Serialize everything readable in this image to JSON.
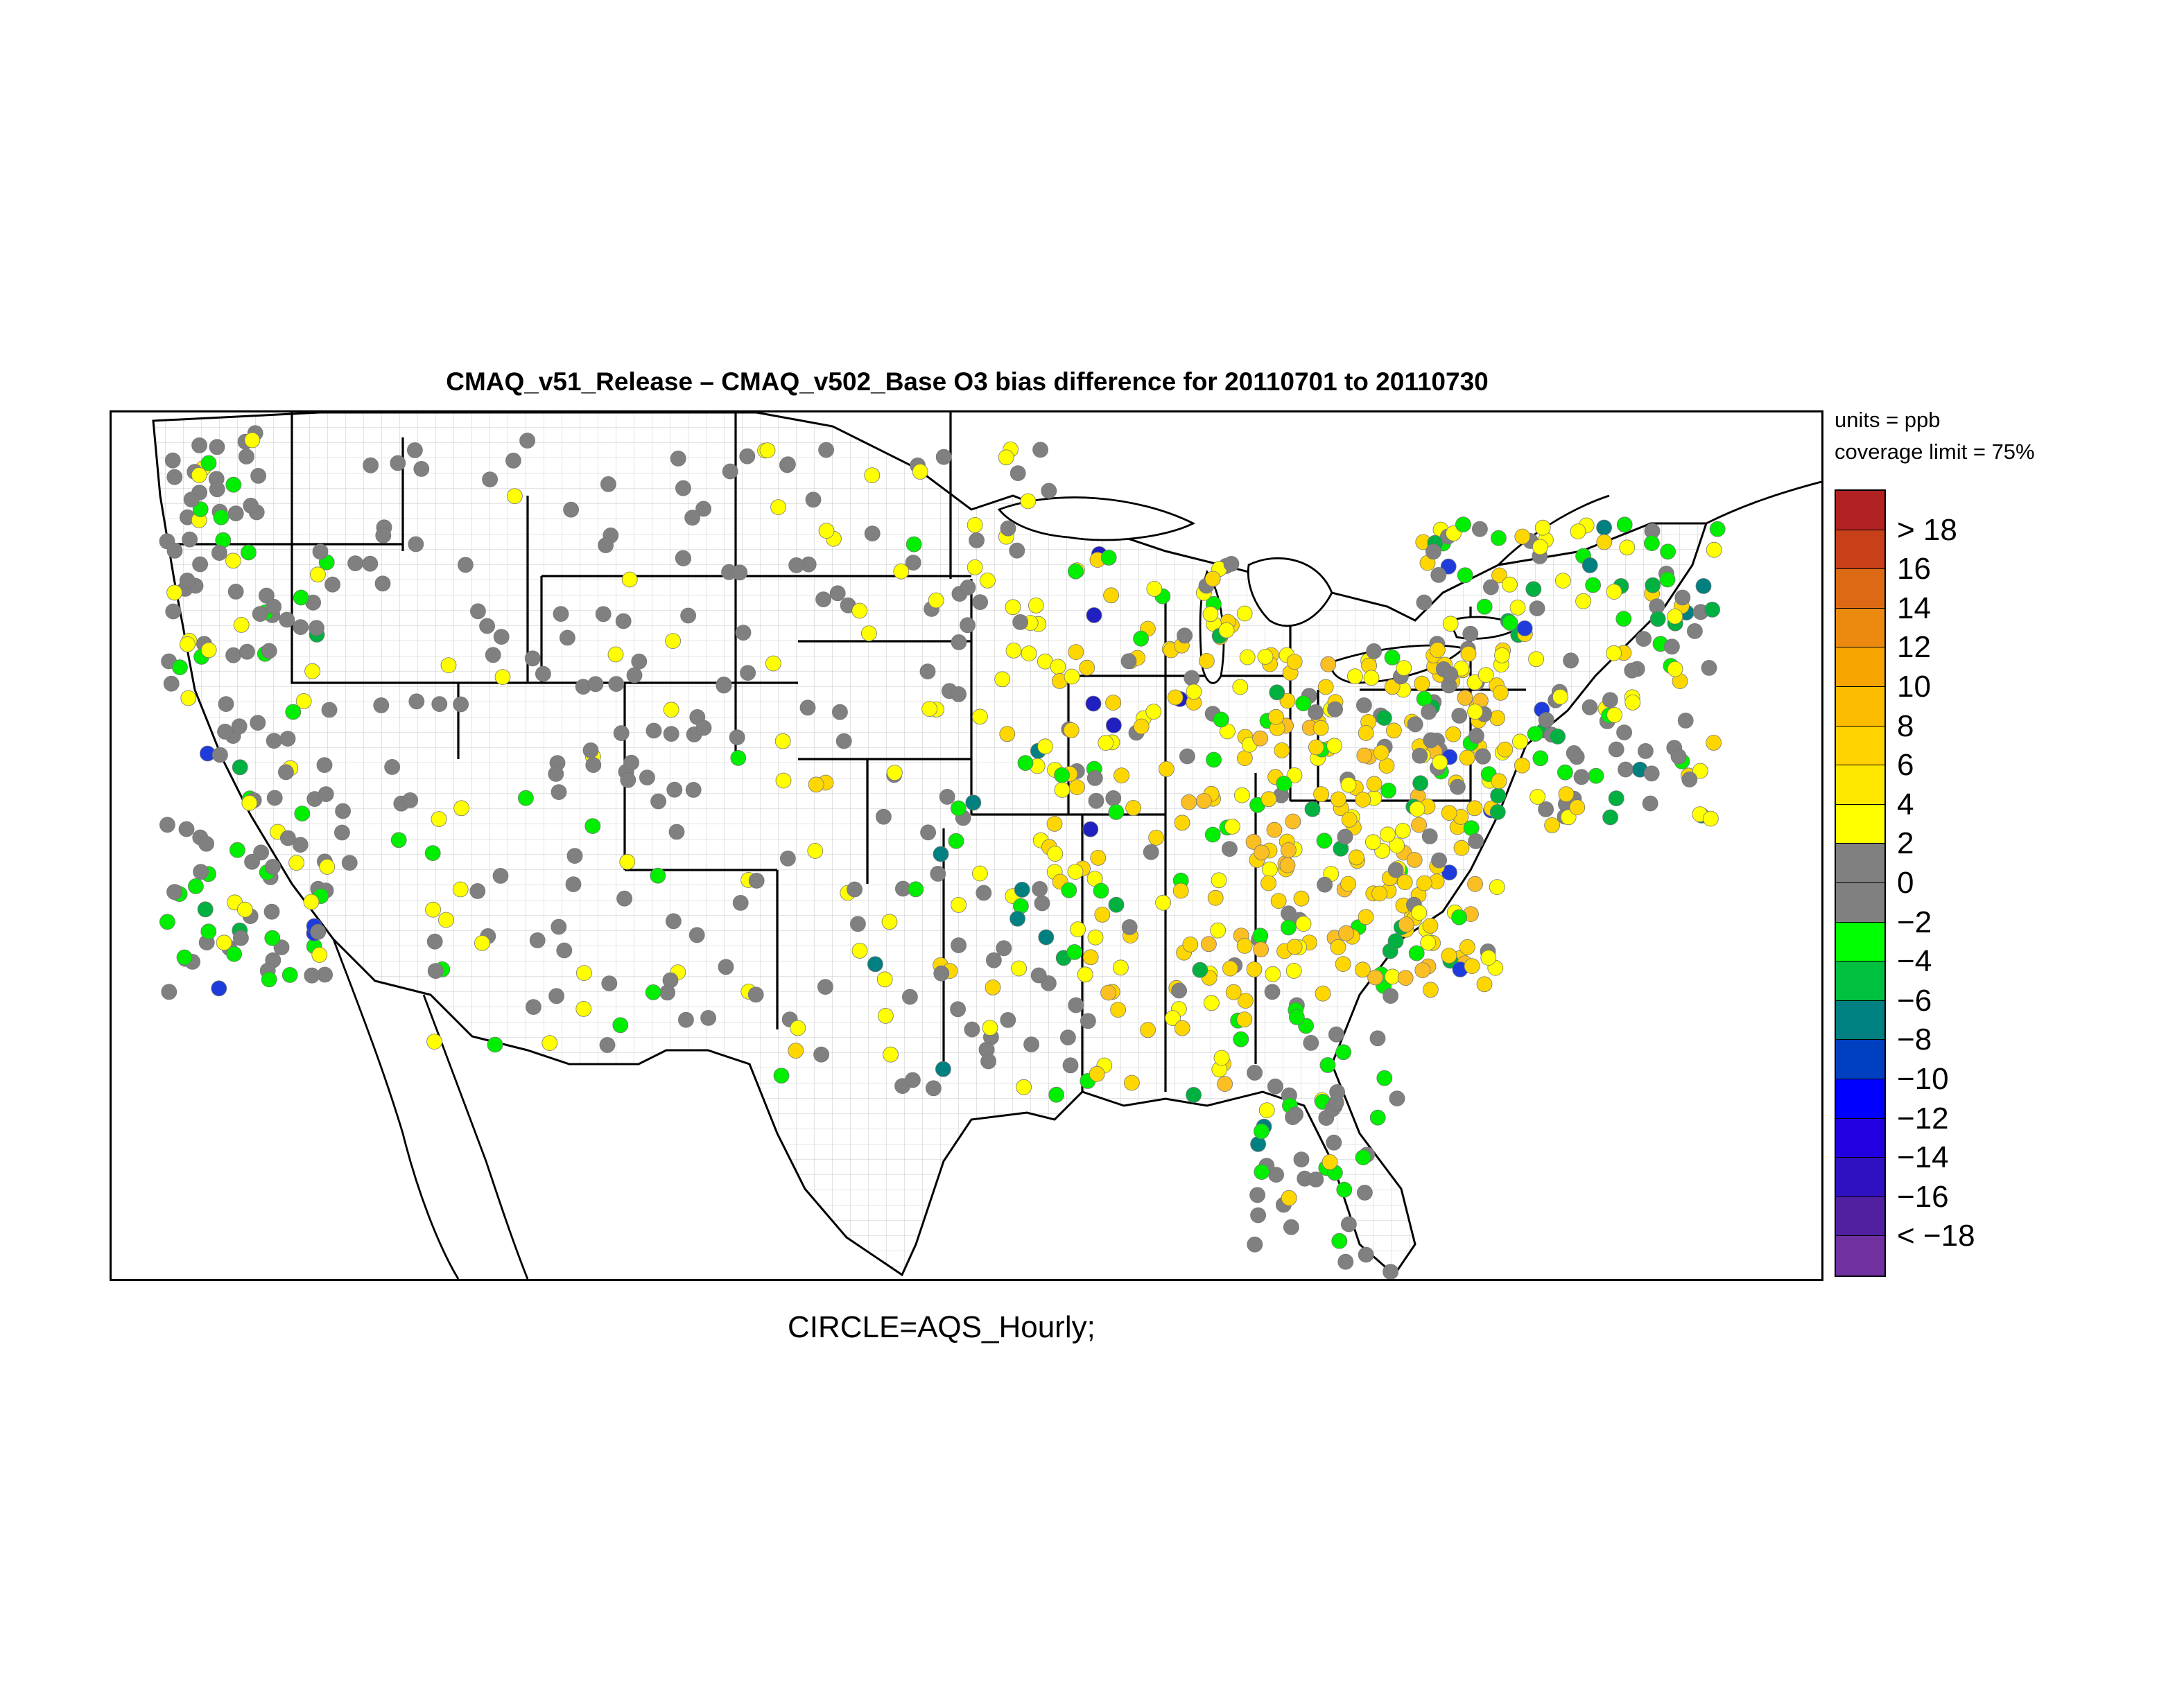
{
  "title": "CMAQ_v51_Release – CMAQ_v502_Base O3 bias difference for 20110701 to 20110730",
  "units_text": "units = ppb",
  "coverage_text": "coverage limit = 75%",
  "caption": "CIRCLE=AQS_Hourly;",
  "legend": {
    "labels": [
      "> 18",
      "16",
      "14",
      "12",
      "10",
      "8",
      "6",
      "4",
      "2",
      "0",
      "−2",
      "−4",
      "−6",
      "−8",
      "−10",
      "−12",
      "−14",
      "−16",
      "< −18"
    ],
    "colors": [
      "#b22222",
      "#c8401a",
      "#dc6a14",
      "#ec8a10",
      "#f6a500",
      "#fcbc00",
      "#ffd200",
      "#ffe800",
      "#ffff00",
      "#808080",
      "#808080",
      "#00ff00",
      "#00c040",
      "#008080",
      "#0040c0",
      "#0000ff",
      "#2000e0",
      "#3010c0",
      "#5020a0",
      "#7030a0"
    ]
  },
  "category_colors": {
    "gray": "#808080",
    "yellow": "#ffff00",
    "gold": "#ffd700",
    "orange": "#fbbf24",
    "dark_orange": "#f59e0b",
    "green": "#00ee00",
    "dark_green": "#00b040",
    "teal": "#008080",
    "blue": "#1e3cdc",
    "deep_blue": "#2020c0"
  },
  "chart_data": {
    "type": "map",
    "marker": "circle",
    "network": "AQS_Hourly",
    "variable": "O3 bias difference",
    "units": "ppb",
    "coverage_limit_percent": 75,
    "period": [
      "20110701",
      "20110730"
    ],
    "region_summary": {
      "west_coast": "mostly gray (0 to 2) with scattered green (-2 to -4) and a few blue near Los Angeles",
      "rocky_mountains_plains": "mostly gray with a few yellow (2 to 4)",
      "midwest_ohio_valley_southeast": "predominantly yellow/gold (2 to 8) with some orange (8 to 10)",
      "gulf_coast_florida": "green (-2 to -6) with teal along coasts",
      "northeast": "mixed yellow, gray and green with blue near New York"
    }
  }
}
